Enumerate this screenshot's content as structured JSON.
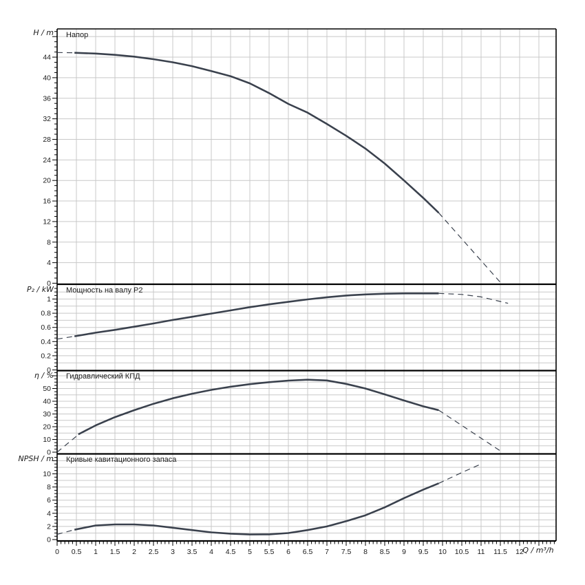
{
  "colors": {
    "curve": "#3a414d",
    "grid": "#c8c8c8",
    "frame": "#000000",
    "text": "#1a1a1a",
    "background": "#ffffff"
  },
  "x_axis": {
    "label": "Q / m³/h",
    "min": 0,
    "max": 12.95,
    "major_tick_step": 0.5,
    "minor_tick_step": 0.1,
    "tick_labels": [
      "0",
      "0.5",
      "1",
      "1.5",
      "2",
      "2.5",
      "3",
      "3.5",
      "4",
      "4.5",
      "5",
      "5.5",
      "6",
      "6.5",
      "7",
      "7.5",
      "8",
      "8.5",
      "9",
      "9.5",
      "10",
      "10.5",
      "11",
      "11.5",
      "12"
    ]
  },
  "chart_data": [
    {
      "type": "line",
      "id": "head",
      "title": "Напор",
      "ylabel": "H / m",
      "ylim": [
        0,
        49.5
      ],
      "ytick_step": 4,
      "ytick_labels": [
        "0",
        "4",
        "8",
        "12",
        "16",
        "20",
        "24",
        "28",
        "32",
        "36",
        "40",
        "44"
      ],
      "grid_step": 4,
      "minor_tick_step": 1,
      "series": [
        {
          "name": "head-dashed-left",
          "style": "dashed",
          "x": [
            0,
            0.45
          ],
          "y": [
            44.9,
            44.85
          ]
        },
        {
          "name": "head-solid",
          "style": "solid",
          "x": [
            0.45,
            1,
            1.5,
            2,
            2.5,
            3,
            3.5,
            4,
            4.5,
            5,
            5.5,
            6,
            6.5,
            7,
            7.5,
            8,
            8.5,
            9,
            9.5,
            9.9
          ],
          "y": [
            44.85,
            44.7,
            44.45,
            44.1,
            43.6,
            43.0,
            42.25,
            41.3,
            40.3,
            38.9,
            37.0,
            34.9,
            33.2,
            31.0,
            28.7,
            26.2,
            23.3,
            20.0,
            16.6,
            13.7
          ]
        },
        {
          "name": "head-dashed-right",
          "style": "dashed",
          "x": [
            9.9,
            11.52
          ],
          "y": [
            13.7,
            0
          ]
        }
      ]
    },
    {
      "type": "line",
      "id": "power",
      "title": "Мощность на валу P2",
      "ylabel": "P₂ / kW",
      "ylim": [
        0,
        1.21
      ],
      "ytick_step": 0.2,
      "ytick_labels": [
        "0",
        "0.2",
        "0.4",
        "0.6",
        "0.8",
        "1"
      ],
      "grid_step": 0.1,
      "minor_tick_step": 0.05,
      "series": [
        {
          "name": "power-dashed-left",
          "style": "dashed",
          "x": [
            0,
            0.45
          ],
          "y": [
            0.435,
            0.475
          ]
        },
        {
          "name": "power-solid",
          "style": "solid",
          "x": [
            0.45,
            1,
            1.5,
            2,
            2.5,
            3,
            3.5,
            4,
            4.5,
            5,
            5.5,
            6,
            6.5,
            7,
            7.5,
            8,
            8.5,
            9,
            9.5,
            9.9
          ],
          "y": [
            0.475,
            0.525,
            0.565,
            0.61,
            0.655,
            0.705,
            0.75,
            0.795,
            0.84,
            0.885,
            0.925,
            0.96,
            0.995,
            1.025,
            1.05,
            1.065,
            1.075,
            1.08,
            1.08,
            1.08
          ]
        },
        {
          "name": "power-dashed-right",
          "style": "dashed",
          "x": [
            9.9,
            10.5,
            11,
            11.7
          ],
          "y": [
            1.08,
            1.065,
            1.03,
            0.94
          ]
        }
      ]
    },
    {
      "type": "line",
      "id": "efficiency",
      "title": "Гидравлический КПД",
      "ylabel": "η / %",
      "ylim": [
        0,
        64
      ],
      "ytick_step": 10,
      "ytick_labels": [
        "0",
        "10",
        "20",
        "30",
        "40",
        "50"
      ],
      "grid_step": 5,
      "minor_tick_step": 2.5,
      "series": [
        {
          "name": "efficiency-dashed-left",
          "style": "dashed",
          "x": [
            0,
            0.5
          ],
          "y": [
            0,
            12.5
          ]
        },
        {
          "name": "efficiency-solid",
          "style": "solid",
          "x": [
            0.55,
            1,
            1.5,
            2,
            2.5,
            3,
            3.5,
            4,
            4.5,
            5,
            5.5,
            6,
            6.5,
            7,
            7.5,
            8,
            8.5,
            9,
            9.5,
            9.9
          ],
          "y": [
            14,
            21,
            27.5,
            33,
            38,
            42.3,
            45.9,
            48.9,
            51.4,
            53.4,
            55,
            56.2,
            56.9,
            56.3,
            53.6,
            50,
            45.4,
            40.6,
            36,
            33
          ]
        },
        {
          "name": "efficiency-dashed-right",
          "style": "dashed",
          "x": [
            9.9,
            11.55
          ],
          "y": [
            33,
            0
          ]
        }
      ]
    },
    {
      "type": "line",
      "id": "npsh",
      "title": "Кривые кавитационного запаса",
      "ylabel": "NPSH / m",
      "ylim": [
        0,
        13
      ],
      "ytick_step": 2,
      "ytick_labels": [
        "0",
        "2",
        "4",
        "6",
        "8",
        "10"
      ],
      "grid_step": 1,
      "minor_tick_step": 0.5,
      "series": [
        {
          "name": "npsh-dashed-left",
          "style": "dashed",
          "x": [
            0,
            0.45
          ],
          "y": [
            0.8,
            1.5
          ]
        },
        {
          "name": "npsh-solid",
          "style": "solid",
          "x": [
            0.45,
            1,
            1.5,
            2,
            2.5,
            3,
            3.5,
            4,
            4.5,
            5,
            5.5,
            6,
            6.5,
            7,
            7.5,
            8,
            8.5,
            9,
            9.5,
            9.9
          ],
          "y": [
            1.5,
            2.15,
            2.3,
            2.3,
            2.15,
            1.8,
            1.45,
            1.1,
            0.9,
            0.78,
            0.8,
            1.0,
            1.45,
            2.0,
            2.8,
            3.7,
            4.9,
            6.3,
            7.6,
            8.55
          ]
        },
        {
          "name": "npsh-dashed-right",
          "style": "dashed",
          "x": [
            9.9,
            10.5,
            11
          ],
          "y": [
            8.55,
            10.2,
            11.5
          ]
        }
      ]
    }
  ]
}
